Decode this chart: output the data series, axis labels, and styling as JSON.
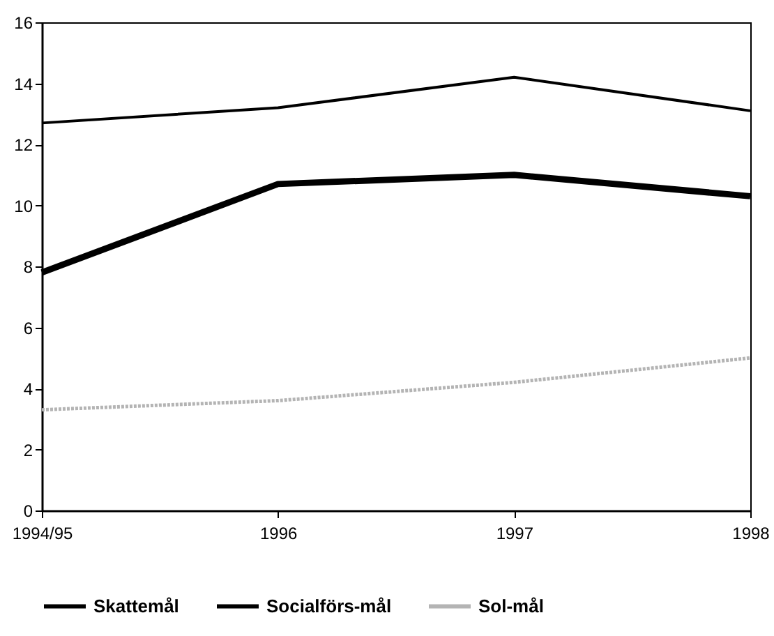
{
  "chart_data": {
    "type": "line",
    "categories": [
      "1994/95",
      "1996",
      "1997",
      "1998"
    ],
    "series": [
      {
        "name": "Skattemål",
        "color": "#000000",
        "values": [
          12.7,
          13.2,
          14.2,
          13.1
        ]
      },
      {
        "name": "Socialförs-mål",
        "color": "#000000",
        "values": [
          7.8,
          10.7,
          11.0,
          10.3
        ]
      },
      {
        "name": "Sol-mål",
        "color": "#b4b4b4",
        "values": [
          3.3,
          3.6,
          4.2,
          5.0
        ],
        "line_style": "dotted"
      }
    ],
    "ylim": [
      0,
      16
    ],
    "yticks": [
      0,
      2,
      4,
      6,
      8,
      10,
      12,
      14,
      16
    ],
    "grid": false,
    "legend": "bottom"
  }
}
